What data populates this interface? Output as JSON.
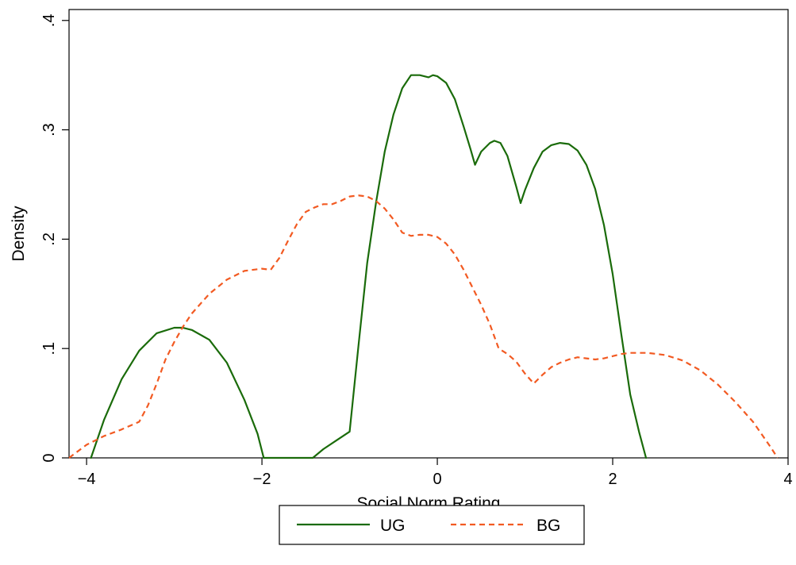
{
  "chart_data": {
    "type": "line",
    "title": "",
    "xlabel": "Social Norm Rating",
    "ylabel": "Density",
    "xlim": [
      -4.2,
      4.0
    ],
    "ylim": [
      0,
      0.41
    ],
    "xticks": [
      -4,
      -2,
      0,
      2,
      4
    ],
    "xtick_labels": [
      "−4",
      "−2",
      "0",
      "2",
      "4"
    ],
    "yticks": [
      0,
      0.1,
      0.2,
      0.3,
      0.4
    ],
    "ytick_labels": [
      "0",
      ".1",
      ".2",
      ".3",
      ".4"
    ],
    "grid": false,
    "legend": {
      "position": "bottom",
      "entries": [
        "UG",
        "BG"
      ]
    },
    "series": [
      {
        "name": "UG",
        "color": "#1a6b0a",
        "dash": "solid",
        "x": [
          -3.95,
          -3.8,
          -3.6,
          -3.4,
          -3.2,
          -3.0,
          -2.9,
          -2.8,
          -2.6,
          -2.4,
          -2.2,
          -2.05,
          -1.98,
          -1.7,
          -1.42,
          -1.3,
          -1.15,
          -1.0,
          -0.9,
          -0.8,
          -0.7,
          -0.6,
          -0.5,
          -0.4,
          -0.3,
          -0.2,
          -0.1,
          -0.05,
          0.0,
          0.1,
          0.2,
          0.3,
          0.38,
          0.43,
          0.5,
          0.6,
          0.65,
          0.72,
          0.8,
          0.9,
          0.95,
          1.0,
          1.1,
          1.2,
          1.3,
          1.4,
          1.5,
          1.6,
          1.7,
          1.8,
          1.9,
          2.0,
          2.1,
          2.2,
          2.3,
          2.38
        ],
        "y": [
          0.0,
          0.035,
          0.072,
          0.098,
          0.114,
          0.119,
          0.119,
          0.117,
          0.108,
          0.087,
          0.053,
          0.022,
          0.0,
          0.0,
          0.0,
          0.008,
          0.016,
          0.024,
          0.102,
          0.178,
          0.233,
          0.28,
          0.314,
          0.338,
          0.35,
          0.35,
          0.348,
          0.35,
          0.349,
          0.343,
          0.328,
          0.303,
          0.282,
          0.268,
          0.28,
          0.288,
          0.29,
          0.288,
          0.276,
          0.248,
          0.233,
          0.245,
          0.265,
          0.28,
          0.286,
          0.288,
          0.287,
          0.281,
          0.268,
          0.246,
          0.213,
          0.168,
          0.112,
          0.058,
          0.024,
          0.0
        ]
      },
      {
        "name": "BG",
        "color": "#f25a22",
        "dash": "dashed",
        "x": [
          -4.2,
          -4.0,
          -3.8,
          -3.6,
          -3.4,
          -3.3,
          -3.2,
          -3.1,
          -3.0,
          -2.9,
          -2.8,
          -2.6,
          -2.4,
          -2.2,
          -2.0,
          -1.9,
          -1.8,
          -1.7,
          -1.6,
          -1.5,
          -1.4,
          -1.3,
          -1.2,
          -1.1,
          -1.0,
          -0.9,
          -0.8,
          -0.7,
          -0.6,
          -0.5,
          -0.4,
          -0.3,
          -0.2,
          -0.1,
          0.0,
          0.1,
          0.2,
          0.3,
          0.4,
          0.5,
          0.6,
          0.7,
          0.8,
          0.9,
          1.0,
          1.1,
          1.2,
          1.3,
          1.4,
          1.5,
          1.6,
          1.7,
          1.8,
          1.9,
          2.0,
          2.1,
          2.2,
          2.4,
          2.6,
          2.8,
          3.0,
          3.2,
          3.4,
          3.6,
          3.8,
          3.88
        ],
        "y": [
          0.0,
          0.012,
          0.02,
          0.026,
          0.033,
          0.048,
          0.068,
          0.09,
          0.106,
          0.12,
          0.132,
          0.15,
          0.163,
          0.171,
          0.173,
          0.172,
          0.183,
          0.199,
          0.214,
          0.225,
          0.229,
          0.232,
          0.232,
          0.235,
          0.239,
          0.24,
          0.239,
          0.235,
          0.228,
          0.218,
          0.206,
          0.203,
          0.204,
          0.204,
          0.202,
          0.196,
          0.186,
          0.172,
          0.156,
          0.14,
          0.122,
          0.1,
          0.095,
          0.088,
          0.077,
          0.068,
          0.076,
          0.083,
          0.087,
          0.09,
          0.092,
          0.091,
          0.09,
          0.091,
          0.093,
          0.095,
          0.096,
          0.096,
          0.094,
          0.089,
          0.08,
          0.067,
          0.051,
          0.033,
          0.01,
          0.0
        ]
      }
    ]
  }
}
